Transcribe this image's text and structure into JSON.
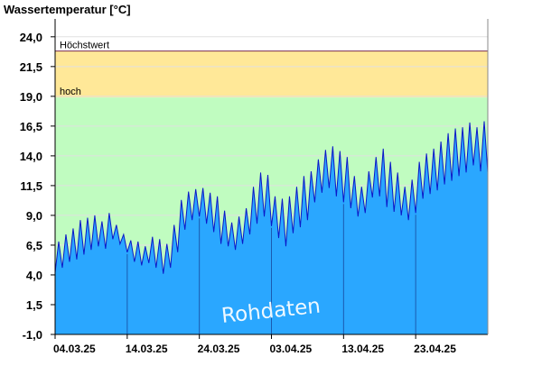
{
  "chart_data": {
    "type": "area",
    "title": "",
    "ylabel": "Wassertemperatur [°C]",
    "xlabel": "",
    "ylim": [
      -1.0,
      25.5
    ],
    "y_ticks": [
      "24,0",
      "21,5",
      "19,0",
      "16,5",
      "14,0",
      "11,5",
      "9,0",
      "6,5",
      "4,0",
      "1,5",
      "-1,0"
    ],
    "x_ticks": [
      "04.03.25",
      "14.03.25",
      "24.03.25",
      "03.04.25",
      "13.04.25",
      "23.04.25"
    ],
    "x_range_days": [
      0,
      60
    ],
    "bands": [
      {
        "name": "hoch",
        "from": 18.9,
        "to": 22.8,
        "color": "#ffe898"
      },
      {
        "name": "Höchstwert",
        "line": 22.8,
        "color": "#7a2b4e"
      }
    ],
    "normal_band": {
      "from": -1.0,
      "to": 18.9,
      "color": "#c0fcc0"
    },
    "series": [
      {
        "name": "Rohdaten",
        "color": "#2aa7ff",
        "line_color": "#0b18c8",
        "x": [
          0,
          0.5,
          1,
          1.5,
          2,
          2.5,
          3,
          3.5,
          4,
          4.5,
          5,
          5.5,
          6,
          6.5,
          7,
          7.5,
          8,
          8.5,
          9,
          9.5,
          10,
          10.5,
          11,
          11.5,
          12,
          12.5,
          13,
          13.5,
          14,
          14.5,
          15,
          15.5,
          16,
          16.5,
          17,
          17.5,
          18,
          18.5,
          19,
          19.5,
          20,
          20.5,
          21,
          21.5,
          22,
          22.5,
          23,
          23.5,
          24,
          24.5,
          25,
          25.5,
          26,
          26.5,
          27,
          27.5,
          28,
          28.5,
          29,
          29.5,
          30,
          30.5,
          31,
          31.5,
          32,
          32.5,
          33,
          33.5,
          34,
          34.5,
          35,
          35.5,
          36,
          36.5,
          37,
          37.5,
          38,
          38.5,
          39,
          39.5,
          40,
          40.5,
          41,
          41.5,
          42,
          42.5,
          43,
          43.5,
          44,
          44.5,
          45,
          45.5,
          46,
          46.5,
          47,
          47.5,
          48,
          48.5,
          49,
          49.5,
          50,
          50.5,
          51,
          51.5,
          52,
          52.5,
          53,
          53.5,
          54,
          54.5,
          55,
          55.5,
          56,
          56.5,
          57,
          57.5,
          58,
          58.5,
          59,
          59.5,
          60
        ],
        "values": [
          4.2,
          6.8,
          4.6,
          7.4,
          5.1,
          7.9,
          5.3,
          8.6,
          5.7,
          8.8,
          6.1,
          9.0,
          6.4,
          8.5,
          6.2,
          9.2,
          7.0,
          8.2,
          6.6,
          7.4,
          5.9,
          6.9,
          5.1,
          6.8,
          4.8,
          6.4,
          5.0,
          7.2,
          4.6,
          7.0,
          4.1,
          6.6,
          4.6,
          8.2,
          5.9,
          10.3,
          7.8,
          11.0,
          8.6,
          11.2,
          8.9,
          11.3,
          8.3,
          10.9,
          7.6,
          10.6,
          6.6,
          9.4,
          6.4,
          8.4,
          6.1,
          8.9,
          6.6,
          9.6,
          7.4,
          11.4,
          8.3,
          12.6,
          8.9,
          12.4,
          8.1,
          10.6,
          7.1,
          10.4,
          6.4,
          10.6,
          7.5,
          11.4,
          8.0,
          12.3,
          8.6,
          12.7,
          10.1,
          13.7,
          10.9,
          14.5,
          11.3,
          14.8,
          10.6,
          14.4,
          10.1,
          13.9,
          9.6,
          12.3,
          8.9,
          11.4,
          9.2,
          12.7,
          10.5,
          13.9,
          10.6,
          14.6,
          9.7,
          13.5,
          9.3,
          12.6,
          9.0,
          11.4,
          8.6,
          12.0,
          9.2,
          13.5,
          10.4,
          14.2,
          10.8,
          14.6,
          11.1,
          15.2,
          11.6,
          15.9,
          11.9,
          16.3,
          12.3,
          16.4,
          12.6,
          16.8,
          13.2,
          16.4,
          12.7,
          16.9,
          12.6
        ]
      }
    ],
    "watermark": "Rohdaten"
  }
}
